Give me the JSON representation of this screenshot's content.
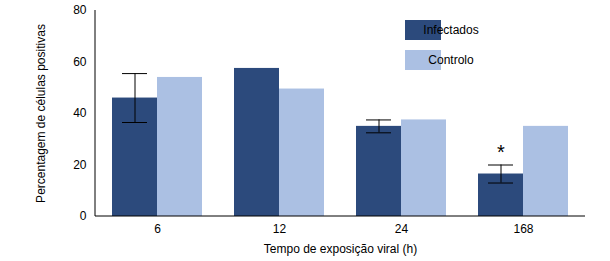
{
  "chart_data": {
    "type": "bar",
    "categories": [
      "6",
      "12",
      "24",
      "168"
    ],
    "series": [
      {
        "name": "Infectados",
        "color": "#2c4a7c",
        "values": [
          46,
          57.5,
          35,
          16.5
        ],
        "errors": [
          9.5,
          null,
          2.5,
          3.5
        ]
      },
      {
        "name": "Controlo",
        "color": "#abc0e3",
        "values": [
          54,
          49.5,
          37.5,
          35
        ]
      }
    ],
    "xlabel": "Tempo de exposição viral (h)",
    "ylabel": "Percentagem de células positivas",
    "ylim": [
      0,
      80
    ],
    "yticks": [
      0,
      20,
      40,
      60,
      80
    ],
    "grid": false,
    "legend": "top-right",
    "annotations": [
      {
        "text": "*",
        "category": "168",
        "series": "Infectados"
      }
    ]
  }
}
